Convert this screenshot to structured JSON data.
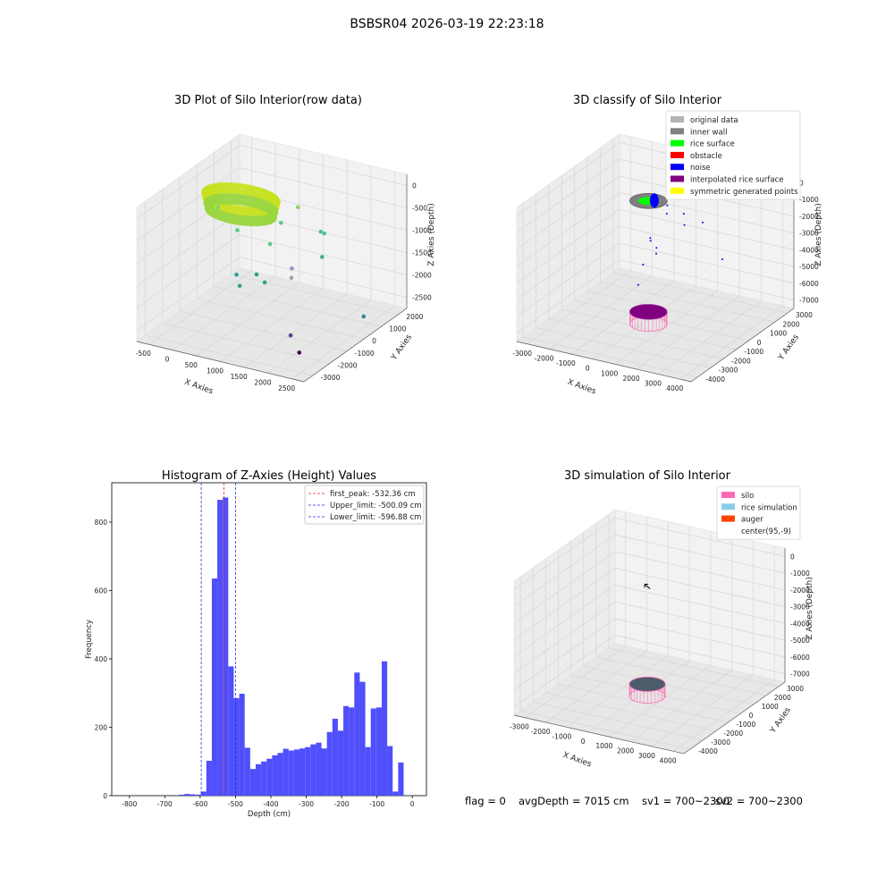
{
  "suptitle": "BSBSR04 2026-03-19 22:23:18",
  "footer": {
    "flag": "flag = 0",
    "avg_depth": "avgDepth = 7015 cm",
    "sv1": "sv1 = 700~2300",
    "sv2": "sv2 = 700~2300"
  },
  "colors": {
    "hist_bar": "#4f4ffb",
    "peak_line": "#e52b2b",
    "limit_line": "#2b2be5",
    "pane": "#f2f2f2",
    "grid": "#d9d9d9"
  },
  "chart_data": [
    {
      "id": "raw",
      "type": "scatter",
      "projection": "3d",
      "title": "3D Plot of Silo Interior(row data)",
      "xlabel": "X Axies",
      "ylabel": "Y Axies",
      "zlabel": "Z Axies (Depth)",
      "xlim": [
        -800,
        2600
      ],
      "ylim": [
        -3200,
        2600
      ],
      "zlim": [
        -3000,
        100
      ],
      "xticks": [
        "-500",
        "0",
        "500",
        "1000",
        "1500",
        "2000",
        "2500"
      ],
      "yticks": [
        "-3000",
        "-2000",
        "-1000",
        "0",
        "1000",
        "2000"
      ],
      "zticks": [
        "0",
        "-500",
        "-1000",
        "-1500",
        "-2000",
        "-2500"
      ],
      "ring": {
        "cx": 200,
        "cy": -100,
        "radius": 700,
        "z_range": [
          -300,
          -650
        ]
      },
      "points": [
        {
          "x": -300,
          "y": 0,
          "z": -700,
          "c": "#7dd37a"
        },
        {
          "x": 200,
          "y": -300,
          "z": -1000,
          "c": "#5ccb8a"
        },
        {
          "x": 800,
          "y": 500,
          "z": -900,
          "c": "#5ccb8a"
        },
        {
          "x": 900,
          "y": -400,
          "z": -1100,
          "c": "#61c98a"
        },
        {
          "x": 1000,
          "y": 900,
          "z": -600,
          "c": "#8ed36a"
        },
        {
          "x": 1500,
          "y": 800,
          "z": -1000,
          "c": "#4fc08d"
        },
        {
          "x": 1500,
          "y": 1000,
          "z": -1100,
          "c": "#4fc08d"
        },
        {
          "x": 1200,
          "y": 0,
          "z": -1700,
          "c": "#9a8fc0"
        },
        {
          "x": 1600,
          "y": 600,
          "z": -1500,
          "c": "#3bb08f"
        },
        {
          "x": 700,
          "y": -600,
          "z": -1800,
          "c": "#2aa08d"
        },
        {
          "x": 900,
          "y": -700,
          "z": -1900,
          "c": "#2aa08d"
        },
        {
          "x": 400,
          "y": -900,
          "z": -1800,
          "c": "#2f9f8e"
        },
        {
          "x": 500,
          "y": -1000,
          "z": -2000,
          "c": "#2f9f8e"
        },
        {
          "x": 1300,
          "y": -300,
          "z": -1800,
          "c": "#a3a3a3"
        },
        {
          "x": 2300,
          "y": 1000,
          "z": -2800,
          "c": "#2a8c8c"
        },
        {
          "x": 1500,
          "y": -900,
          "z": -2900,
          "c": "#3e4a89"
        },
        {
          "x": 2000,
          "y": -1800,
          "z": -2900,
          "c": "#440154"
        }
      ]
    },
    {
      "id": "classify",
      "type": "scatter",
      "projection": "3d",
      "title": "3D classify of Silo Interior",
      "xlabel": "X Axies",
      "ylabel": "Y Axies",
      "zlabel": "Z Axies (Depth)",
      "xlim": [
        -3200,
        4300
      ],
      "ylim": [
        -4200,
        3800
      ],
      "zlim": [
        -7600,
        200
      ],
      "xticks": [
        "-3000",
        "-2000",
        "-1000",
        "0",
        "1000",
        "2000",
        "3000",
        "4000"
      ],
      "yticks": [
        "-4000",
        "-3000",
        "-2000",
        "-1000",
        "0",
        "1000",
        "2000",
        "3000"
      ],
      "zticks": [
        "0",
        "-1000",
        "-2000",
        "-3000",
        "-4000",
        "-5000",
        "-6000",
        "-7000"
      ],
      "legend_position": "upper right",
      "legend": [
        {
          "label": "original data",
          "color": "#b3b3b3"
        },
        {
          "label": "inner wall",
          "color": "#808080"
        },
        {
          "label": "rice surface",
          "color": "#00ff00"
        },
        {
          "label": "obstacle",
          "color": "#ff0000"
        },
        {
          "label": "noise",
          "color": "#0000ff"
        },
        {
          "label": "interpolated rice surface",
          "color": "#800080"
        },
        {
          "label": "symmetric generated points",
          "color": "#ffff00"
        }
      ],
      "top_ring": {
        "cx": 200,
        "cy": -100,
        "radius": 700,
        "z": -550
      },
      "cylinder": {
        "cx": 200,
        "cy": -100,
        "radius": 700,
        "z_top": -7000,
        "z_bottom": -7700
      },
      "noise_points": [
        {
          "x": 900,
          "y": 100,
          "z": -700
        },
        {
          "x": 1100,
          "y": -300,
          "z": -900
        },
        {
          "x": 1500,
          "y": 300,
          "z": -1100
        },
        {
          "x": 1800,
          "y": -200,
          "z": -1400
        },
        {
          "x": 2200,
          "y": 500,
          "z": -1500
        },
        {
          "x": 500,
          "y": -500,
          "z": -2400
        },
        {
          "x": 400,
          "y": -300,
          "z": -2700
        },
        {
          "x": 600,
          "y": -200,
          "z": -3100
        },
        {
          "x": 700,
          "y": -400,
          "z": -3300
        },
        {
          "x": 300,
          "y": -700,
          "z": -3900
        },
        {
          "x": 200,
          "y": -900,
          "z": -5000
        },
        {
          "x": 3100,
          "y": 400,
          "z": -3300
        }
      ]
    },
    {
      "id": "hist",
      "type": "bar",
      "title": "Histogram of Z-Axies (Height) Values",
      "xlabel": "Depth (cm)",
      "ylabel": "Frequency",
      "xlim": [
        -850,
        40
      ],
      "ylim": [
        0,
        915
      ],
      "xticks": [
        -800,
        -700,
        -600,
        -500,
        -400,
        -300,
        -200,
        -100,
        0
      ],
      "yticks": [
        0,
        200,
        400,
        600,
        800
      ],
      "bin_width": 15.5,
      "bin_start": -660,
      "values": [
        3,
        5,
        4,
        3,
        12,
        102,
        635,
        865,
        872,
        378,
        285,
        298,
        140,
        78,
        92,
        100,
        108,
        118,
        125,
        137,
        132,
        135,
        138,
        142,
        150,
        155,
        138,
        186,
        225,
        190,
        262,
        258,
        360,
        333,
        142,
        255,
        258,
        393,
        145,
        12,
        97
      ],
      "vlines": [
        {
          "x": -532.36,
          "style": "peak",
          "label": "first_peak: -532.36 cm"
        },
        {
          "x": -500.09,
          "style": "limit",
          "label": "Upper_limit: -500.09 cm"
        },
        {
          "x": -596.88,
          "style": "limit",
          "label": "Lower_limit: -596.88 cm"
        }
      ],
      "legend_position": "upper right"
    },
    {
      "id": "sim",
      "type": "scatter",
      "projection": "3d",
      "title": "3D simulation of Silo Interior",
      "xlabel": "X Axies",
      "ylabel": "Y Axies",
      "zlabel": "Z Axies (Depth)",
      "xlim": [
        -3500,
        4100
      ],
      "ylim": [
        -4200,
        3800
      ],
      "zlim": [
        -7700,
        300
      ],
      "xticks": [
        "-3000",
        "-2000",
        "-1000",
        "0",
        "1000",
        "2000",
        "3000",
        "4000"
      ],
      "yticks": [
        "-4000",
        "-3000",
        "-2000",
        "-1000",
        "0",
        "1000",
        "2000",
        "3000"
      ],
      "zticks": [
        "0",
        "-1000",
        "-2000",
        "-3000",
        "-4000",
        "-5000",
        "-6000",
        "-7000"
      ],
      "legend_position": "upper right",
      "legend": [
        {
          "label": "silo",
          "color": "#ff69b4"
        },
        {
          "label": "rice simulation",
          "color": "#87ceeb"
        },
        {
          "label": "auger",
          "color": "#ff4500"
        },
        {
          "label": "center(95,-9)",
          "color": "#ffffff"
        }
      ],
      "cylinder": {
        "cx": 95,
        "cy": -9,
        "radius": 700,
        "z_top": -7000,
        "z_bottom": -7700
      },
      "center_marker": {
        "x": 95,
        "y": -9,
        "z": -1200
      }
    }
  ]
}
